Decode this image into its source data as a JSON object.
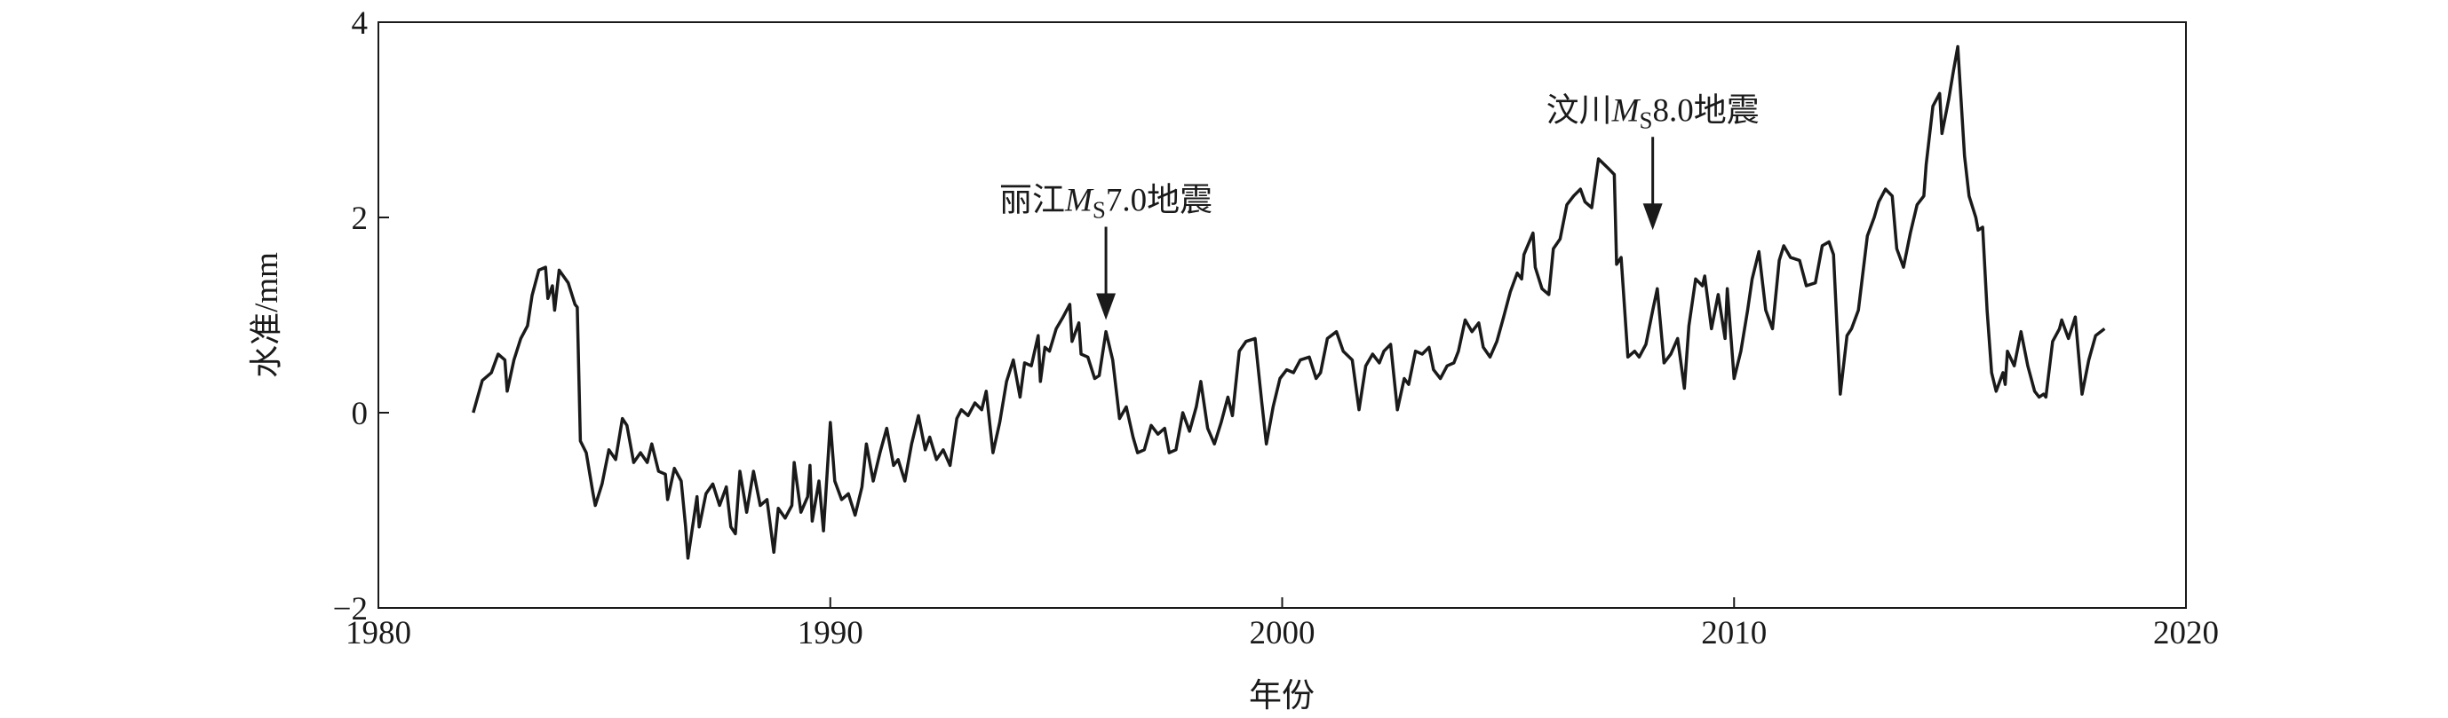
{
  "chart_data": {
    "type": "line",
    "xlabel": "年份",
    "ylabel": "水准/mm",
    "color": "#1a1a1a",
    "xlim": [
      1980,
      2020
    ],
    "xticks": [
      1980,
      1990,
      2000,
      2010,
      2020
    ],
    "ylim": [
      -2,
      4
    ],
    "yticks": [
      {
        "value": -2,
        "label": "−2"
      },
      0,
      2,
      4
    ],
    "x": [
      1982.1,
      1982.3,
      1982.5,
      1982.65,
      1982.8,
      1982.85,
      1983.0,
      1983.15,
      1983.3,
      1983.4,
      1983.55,
      1983.7,
      1983.75,
      1983.85,
      1983.9,
      1984.0,
      1984.2,
      1984.35,
      1984.4,
      1984.47,
      1984.6,
      1984.75,
      1984.8,
      1984.95,
      1985.1,
      1985.25,
      1985.4,
      1985.5,
      1985.65,
      1985.8,
      1985.95,
      1986.05,
      1986.2,
      1986.35,
      1986.4,
      1986.55,
      1986.7,
      1986.8,
      1986.85,
      1987.0,
      1987.05,
      1987.1,
      1987.25,
      1987.4,
      1987.55,
      1987.7,
      1987.8,
      1987.9,
      1988.0,
      1988.15,
      1988.3,
      1988.45,
      1988.6,
      1988.75,
      1988.85,
      1989.0,
      1989.15,
      1989.2,
      1989.35,
      1989.5,
      1989.55,
      1989.6,
      1989.75,
      1989.85,
      1990.0,
      1990.1,
      1990.25,
      1990.4,
      1990.55,
      1990.7,
      1990.8,
      1990.95,
      1991.1,
      1991.25,
      1991.4,
      1991.5,
      1991.65,
      1991.8,
      1991.95,
      1992.1,
      1992.2,
      1992.35,
      1992.5,
      1992.65,
      1992.8,
      1992.9,
      1993.05,
      1993.2,
      1993.35,
      1993.45,
      1993.6,
      1993.75,
      1993.9,
      1994.05,
      1994.2,
      1994.3,
      1994.45,
      1994.6,
      1994.65,
      1994.75,
      1994.85,
      1995.0,
      1995.15,
      1995.3,
      1995.35,
      1995.5,
      1995.55,
      1995.7,
      1995.85,
      1995.95,
      1996.1,
      1996.25,
      1996.4,
      1996.55,
      1996.7,
      1996.8,
      1996.95,
      1997.1,
      1997.25,
      1997.4,
      1997.5,
      1997.65,
      1997.8,
      1997.95,
      1998.1,
      1998.2,
      1998.35,
      1998.5,
      1998.65,
      1998.8,
      1998.9,
      1999.05,
      1999.2,
      1999.4,
      1999.55,
      1999.65,
      1999.8,
      1999.95,
      2000.1,
      2000.25,
      2000.4,
      2000.6,
      2000.75,
      2000.85,
      2001.0,
      2001.2,
      2001.35,
      2001.55,
      2001.7,
      2001.85,
      2002.0,
      2002.15,
      2002.25,
      2002.4,
      2002.55,
      2002.7,
      2002.8,
      2002.95,
      2003.1,
      2003.25,
      2003.35,
      2003.5,
      2003.65,
      2003.8,
      2003.9,
      2004.05,
      2004.2,
      2004.35,
      2004.45,
      2004.6,
      2004.75,
      2004.9,
      2005.05,
      2005.2,
      2005.3,
      2005.35,
      2005.55,
      2005.6,
      2005.75,
      2005.9,
      2006.0,
      2006.15,
      2006.3,
      2006.45,
      2006.6,
      2006.7,
      2006.85,
      2007.0,
      2007.2,
      2007.35,
      2007.4,
      2007.5,
      2007.65,
      2007.8,
      2007.9,
      2008.05,
      2008.2,
      2008.3,
      2008.45,
      2008.6,
      2008.75,
      2008.9,
      2009.0,
      2009.15,
      2009.3,
      2009.35,
      2009.5,
      2009.65,
      2009.8,
      2009.85,
      2010.0,
      2010.15,
      2010.3,
      2010.4,
      2010.55,
      2010.7,
      2010.85,
      2011.0,
      2011.1,
      2011.25,
      2011.45,
      2011.6,
      2011.8,
      2011.95,
      2012.1,
      2012.2,
      2012.35,
      2012.5,
      2012.6,
      2012.75,
      2012.95,
      2013.1,
      2013.2,
      2013.35,
      2013.5,
      2013.6,
      2013.75,
      2013.9,
      2014.05,
      2014.2,
      2014.25,
      2014.4,
      2014.55,
      2014.6,
      2014.75,
      2014.85,
      2014.95,
      2015.1,
      2015.2,
      2015.35,
      2015.4,
      2015.5,
      2015.6,
      2015.7,
      2015.8,
      2015.95,
      2016.0,
      2016.05,
      2016.2,
      2016.35,
      2016.5,
      2016.65,
      2016.75,
      2016.85,
      2016.9,
      2017.05,
      2017.2,
      2017.25,
      2017.4,
      2017.55,
      2017.7,
      2017.85,
      2018.0,
      2018.2
    ],
    "values": [
      0.0,
      0.33,
      0.41,
      0.6,
      0.54,
      0.22,
      0.54,
      0.76,
      0.89,
      1.2,
      1.46,
      1.49,
      1.17,
      1.3,
      1.05,
      1.46,
      1.33,
      1.11,
      1.08,
      -0.29,
      -0.41,
      -0.83,
      -0.95,
      -0.73,
      -0.38,
      -0.48,
      -0.06,
      -0.13,
      -0.51,
      -0.41,
      -0.51,
      -0.32,
      -0.6,
      -0.63,
      -0.89,
      -0.57,
      -0.7,
      -1.17,
      -1.49,
      -1.02,
      -0.86,
      -1.17,
      -0.83,
      -0.73,
      -0.95,
      -0.76,
      -1.17,
      -1.24,
      -0.6,
      -1.02,
      -0.6,
      -0.95,
      -0.89,
      -1.43,
      -0.98,
      -1.08,
      -0.95,
      -0.51,
      -1.02,
      -0.86,
      -0.54,
      -1.11,
      -0.7,
      -1.21,
      -0.1,
      -0.7,
      -0.89,
      -0.83,
      -1.05,
      -0.76,
      -0.32,
      -0.7,
      -0.41,
      -0.16,
      -0.54,
      -0.48,
      -0.7,
      -0.32,
      -0.03,
      -0.38,
      -0.25,
      -0.48,
      -0.38,
      -0.54,
      -0.06,
      0.03,
      -0.03,
      0.1,
      0.03,
      0.22,
      -0.41,
      -0.1,
      0.32,
      0.54,
      0.16,
      0.51,
      0.48,
      0.79,
      0.32,
      0.67,
      0.63,
      0.86,
      0.98,
      1.11,
      0.73,
      0.92,
      0.6,
      0.57,
      0.35,
      0.38,
      0.83,
      0.54,
      -0.06,
      0.06,
      -0.25,
      -0.41,
      -0.38,
      -0.13,
      -0.22,
      -0.16,
      -0.41,
      -0.38,
      0.0,
      -0.19,
      0.06,
      0.32,
      -0.16,
      -0.32,
      -0.1,
      0.16,
      -0.03,
      0.63,
      0.73,
      0.76,
      0.1,
      -0.32,
      0.06,
      0.35,
      0.44,
      0.41,
      0.54,
      0.57,
      0.35,
      0.41,
      0.76,
      0.83,
      0.63,
      0.54,
      0.03,
      0.48,
      0.6,
      0.51,
      0.63,
      0.7,
      0.03,
      0.35,
      0.29,
      0.63,
      0.6,
      0.67,
      0.44,
      0.35,
      0.48,
      0.51,
      0.63,
      0.95,
      0.83,
      0.92,
      0.67,
      0.57,
      0.73,
      0.98,
      1.24,
      1.43,
      1.37,
      1.62,
      1.84,
      1.49,
      1.27,
      1.21,
      1.68,
      1.78,
      2.13,
      2.22,
      2.29,
      2.16,
      2.1,
      2.6,
      2.51,
      2.44,
      1.52,
      1.59,
      0.57,
      0.63,
      0.57,
      0.7,
      1.05,
      1.27,
      0.51,
      0.6,
      0.76,
      0.25,
      0.89,
      1.37,
      1.3,
      1.4,
      0.86,
      1.21,
      0.76,
      1.27,
      0.35,
      0.63,
      1.05,
      1.37,
      1.65,
      1.05,
      0.86,
      1.56,
      1.71,
      1.59,
      1.56,
      1.3,
      1.33,
      1.71,
      1.75,
      1.62,
      0.19,
      0.79,
      0.86,
      1.05,
      1.81,
      2.0,
      2.16,
      2.29,
      2.22,
      1.68,
      1.49,
      1.84,
      2.13,
      2.22,
      2.54,
      3.14,
      3.27,
      2.86,
      3.21,
      3.49,
      3.75,
      2.63,
      2.22,
      2.0,
      1.87,
      1.9,
      1.05,
      0.41,
      0.22,
      0.41,
      0.29,
      0.63,
      0.48,
      0.83,
      0.48,
      0.22,
      0.16,
      0.19,
      0.16,
      0.73,
      0.86,
      0.95,
      0.76,
      0.98,
      0.19,
      0.54,
      0.79,
      0.86
    ],
    "annotations": [
      {
        "prefix": "丽江",
        "symbol": "M",
        "subscript": "S",
        "suffix": "7.0地震",
        "x": 1996.1,
        "y": 0.95
      },
      {
        "prefix": "汶川",
        "symbol": "M",
        "subscript": "S",
        "suffix": "8.0地震",
        "x": 2008.2,
        "y": 1.87
      }
    ]
  }
}
